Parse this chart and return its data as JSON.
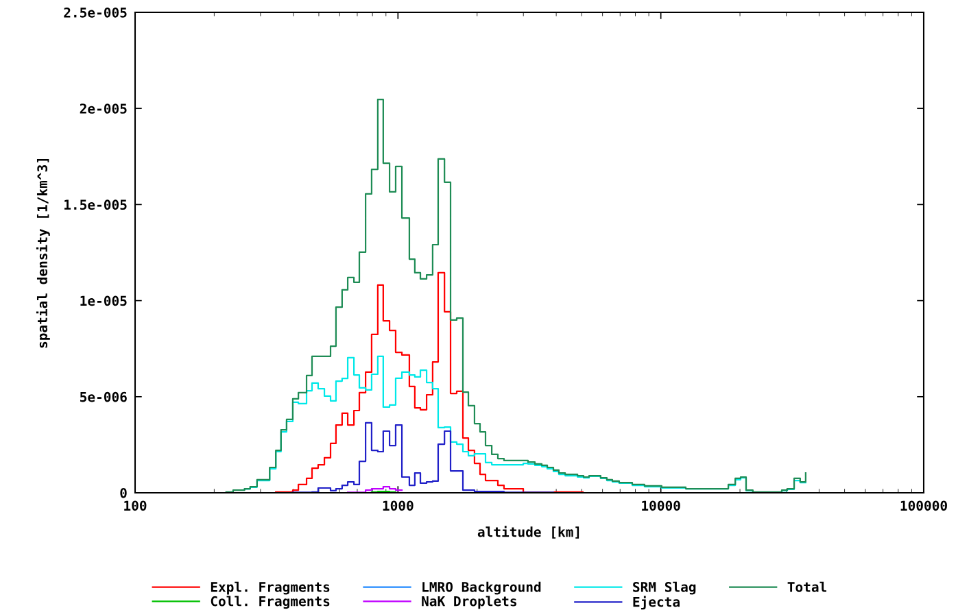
{
  "chart_data": {
    "type": "step",
    "xlabel": "altitude [km]",
    "ylabel": "spatial density [1/km^3]",
    "log": "x",
    "grid": false,
    "legend": "bottom",
    "marker": "none",
    "line_style": "solid",
    "xlim": [
      100,
      100000
    ],
    "xticks": [
      100,
      1000,
      10000,
      100000
    ],
    "ylim": [
      0,
      2.5e-05
    ],
    "yticks": [
      {
        "value": 0,
        "label": "0"
      },
      {
        "value": 5e-06,
        "label": "5e-006"
      },
      {
        "value": 1e-05,
        "label": "1e-005"
      },
      {
        "value": 1.5e-05,
        "label": "1.5e-005"
      },
      {
        "value": 2e-05,
        "label": "2e-005"
      },
      {
        "value": 2.5e-05,
        "label": "2.5e-005"
      }
    ],
    "series": [
      {
        "name": "Expl. Fragments",
        "color": "#ff0000",
        "x": [
          343,
          398,
          418,
          449,
          471,
          497,
          525,
          554,
          581,
          613,
          644,
          680,
          713,
          753,
          794,
          838,
          879,
          929,
          980,
          1035,
          1105,
          1159,
          1217,
          1285,
          1355,
          1422,
          1503,
          1585,
          1673,
          1766,
          1853,
          1955,
          2052,
          2153,
          2399,
          2531,
          2997,
          3926,
          5050
        ],
        "values": [
          4e-08,
          1.4e-07,
          4.3e-07,
          7.5e-07,
          1.28e-06,
          1.46e-06,
          1.82e-06,
          2.57e-06,
          3.53e-06,
          4.14e-06,
          3.53e-06,
          4.28e-06,
          5.21e-06,
          6.28e-06,
          8.24e-06,
          1.081e-05,
          8.95e-06,
          8.45e-06,
          7.31e-06,
          7.17e-06,
          5.53e-06,
          4.42e-06,
          4.32e-06,
          5.1e-06,
          6.81e-06,
          1.145e-05,
          9.42e-06,
          5.17e-06,
          5.28e-06,
          2.85e-06,
          2.21e-06,
          1.53e-06,
          9.6e-07,
          6.4e-07,
          3.9e-07,
          2.1e-07,
          2e-08,
          4e-08,
          4e-08
        ]
      },
      {
        "name": "Coll. Fragments",
        "color": "#00c000",
        "x": [
          794,
          838,
          929,
          980
        ],
        "values": [
          4e-08,
          7e-08,
          4e-08,
          4e-08
        ]
      },
      {
        "name": "LMRO Background",
        "color": "#1e88ff"
      },
      {
        "name": "NaK Droplets",
        "color": "#c000ff",
        "x": [
          644,
          753,
          794,
          879,
          929,
          980,
          1035
        ],
        "values": [
          2e-08,
          1.4e-07,
          2.1e-07,
          3.2e-07,
          2.1e-07,
          1.4e-07,
          1.4e-07
        ]
      },
      {
        "name": "SRM Slag",
        "color": "#00e8e8",
        "x": [
          261,
          274,
          291,
          325,
          343,
          359,
          377,
          398,
          418,
          449,
          471,
          497,
          525,
          554,
          581,
          613,
          644,
          680,
          713,
          753,
          794,
          838,
          879,
          929,
          980,
          1035,
          1105,
          1159,
          1217,
          1285,
          1355,
          1422,
          1503,
          1585,
          1673,
          1766,
          1853,
          1955,
          2052,
          2153,
          2274,
          2997,
          3124,
          3318,
          3524,
          3698,
          3902,
          4093,
          4325,
          4819,
          5083,
          5333,
          5902,
          6232,
          6540,
          6944,
          7785,
          8670,
          10070,
          12440,
          18060,
          19190,
          20110,
          21100,
          22390,
          28840,
          30270,
          32140,
          33890,
          35560
        ],
        "values": [
          2e-07,
          2.9e-07,
          6.4e-07,
          1.25e-06,
          2.14e-06,
          3.17e-06,
          3.71e-06,
          4.71e-06,
          4.64e-06,
          5.31e-06,
          5.71e-06,
          5.42e-06,
          5.03e-06,
          4.78e-06,
          5.81e-06,
          5.95e-06,
          7.03e-06,
          6.13e-06,
          5.46e-06,
          5.35e-06,
          6.17e-06,
          7.1e-06,
          4.46e-06,
          4.57e-06,
          5.96e-06,
          6.28e-06,
          6.13e-06,
          6.03e-06,
          6.38e-06,
          5.74e-06,
          5.42e-06,
          3.39e-06,
          3.42e-06,
          2.64e-06,
          2.53e-06,
          2.14e-06,
          1.93e-06,
          2.03e-06,
          2.03e-06,
          1.57e-06,
          1.46e-06,
          1.53e-06,
          1.5e-06,
          1.43e-06,
          1.36e-06,
          1.25e-06,
          1.11e-06,
          9.6e-07,
          8.9e-07,
          8.2e-07,
          7.8e-07,
          8.6e-07,
          7.5e-07,
          6.4e-07,
          5.7e-07,
          5e-07,
          3.9e-07,
          3.2e-07,
          2.5e-07,
          2.1e-07,
          3.9e-07,
          6.8e-07,
          7.8e-07,
          1.1e-07,
          2e-08,
          1.1e-07,
          1.8e-07,
          6.4e-07,
          5.3e-07,
          5.3e-07
        ]
      },
      {
        "name": "Ejecta",
        "color": "#2020c8",
        "x": [
          398,
          471,
          497,
          554,
          581,
          613,
          644,
          680,
          713,
          753,
          794,
          838,
          879,
          929,
          980,
          1035,
          1105,
          1159,
          1217,
          1285,
          1355,
          1422,
          1503,
          1585,
          1766,
          1955,
          2531,
          3902
        ],
        "values": [
          2e-08,
          4e-08,
          2.5e-07,
          1.1e-07,
          2.1e-07,
          3.9e-07,
          5.7e-07,
          4.3e-07,
          1.64e-06,
          3.64e-06,
          2.21e-06,
          2.14e-06,
          3.21e-06,
          2.46e-06,
          3.53e-06,
          8.2e-07,
          3.9e-07,
          1.03e-06,
          5e-07,
          5.7e-07,
          6.1e-07,
          2.53e-06,
          3.21e-06,
          1.14e-06,
          1.4e-07,
          7e-08,
          2e-08,
          2e-08
        ]
      },
      {
        "name": "Total",
        "color": "#1e8c55",
        "x": [
          222,
          236,
          261,
          274,
          291,
          325,
          343,
          359,
          377,
          398,
          418,
          449,
          471,
          554,
          581,
          613,
          644,
          680,
          713,
          753,
          794,
          838,
          879,
          929,
          980,
          1035,
          1105,
          1159,
          1217,
          1285,
          1355,
          1422,
          1503,
          1585,
          1673,
          1766,
          1853,
          1955,
          2052,
          2153,
          2274,
          2399,
          2531,
          3124,
          3318,
          3524,
          3698,
          3902,
          4093,
          4325,
          4819,
          5083,
          5333,
          5902,
          6232,
          6540,
          6944,
          7785,
          8670,
          10070,
          12440,
          18060,
          19190,
          20110,
          21100,
          22390,
          28840,
          30270,
          32140,
          33890,
          35560
        ],
        "values": [
          4e-08,
          1.4e-07,
          2.1e-07,
          3.2e-07,
          6.8e-07,
          1.32e-06,
          2.21e-06,
          3.28e-06,
          3.82e-06,
          4.89e-06,
          5.21e-06,
          6.1e-06,
          7.1e-06,
          7.63e-06,
          9.66e-06,
          1.056e-05,
          1.12e-05,
          1.095e-05,
          1.252e-05,
          1.555e-05,
          1.683e-05,
          2.047e-05,
          1.715e-05,
          1.566e-05,
          1.698e-05,
          1.43e-05,
          1.216e-05,
          1.145e-05,
          1.113e-05,
          1.134e-05,
          1.291e-05,
          1.737e-05,
          1.616e-05,
          8.99e-06,
          9.09e-06,
          5.24e-06,
          4.53e-06,
          3.6e-06,
          3.17e-06,
          2.46e-06,
          2e-06,
          1.78e-06,
          1.68e-06,
          1.6e-06,
          1.5e-06,
          1.43e-06,
          1.32e-06,
          1.18e-06,
          1.03e-06,
          9.6e-07,
          8.9e-07,
          8.2e-07,
          8.9e-07,
          7.8e-07,
          6.8e-07,
          6.1e-07,
          5.3e-07,
          4.3e-07,
          3.6e-07,
          2.9e-07,
          2.1e-07,
          4.3e-07,
          7.5e-07,
          8.2e-07,
          1.4e-07,
          4e-08,
          1.4e-07,
          2.1e-07,
          7.5e-07,
          5.7e-07,
          1.03e-06
        ]
      }
    ]
  }
}
